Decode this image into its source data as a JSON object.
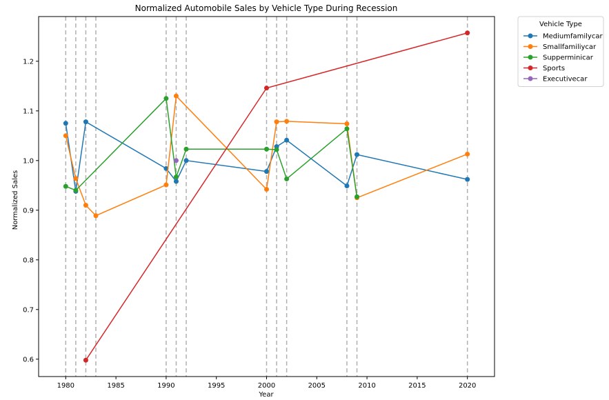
{
  "chart_data": {
    "type": "line",
    "title": "Normalized Automobile Sales by Vehicle Type During Recession",
    "xlabel": "Year",
    "ylabel": "Normalized Sales",
    "xlim": [
      1977.3,
      2022.7
    ],
    "ylim": [
      0.565,
      1.29
    ],
    "x_ticks": [
      1980,
      1985,
      1990,
      1995,
      2000,
      2005,
      2010,
      2015,
      2020
    ],
    "y_ticks": [
      0.6,
      0.7,
      0.8,
      0.9,
      1.0,
      1.1,
      1.2
    ],
    "y_tick_labels": [
      "0.6",
      "0.7",
      "0.8",
      "0.9",
      "1.0",
      "1.1",
      "1.2"
    ],
    "grid": false,
    "recession_years": [
      1980,
      1981,
      1982,
      1983,
      1990,
      1991,
      1992,
      2000,
      2001,
      2002,
      2008,
      2009,
      2020
    ],
    "legend_title": "Vehicle Type",
    "legend_position": "outside-upper-right",
    "series": [
      {
        "name": "Mediumfamilycar",
        "color": "#1f77b4",
        "points": [
          [
            1980,
            1.075
          ],
          [
            1981,
            0.938
          ],
          [
            1982,
            1.078
          ],
          [
            1990,
            0.984
          ],
          [
            1991,
            0.958
          ],
          [
            1992,
            1.0
          ],
          [
            2000,
            0.978
          ],
          [
            2001,
            1.028
          ],
          [
            2002,
            1.041
          ],
          [
            2008,
            0.949
          ],
          [
            2009,
            1.012
          ],
          [
            2020,
            0.962
          ]
        ]
      },
      {
        "name": "Smallfamiliycar",
        "color": "#ff7f0e",
        "points": [
          [
            1980,
            1.05
          ],
          [
            1981,
            0.964
          ],
          [
            1982,
            0.91
          ],
          [
            1983,
            0.889
          ],
          [
            1990,
            0.951
          ],
          [
            1991,
            1.13
          ],
          [
            2000,
            0.942
          ],
          [
            2001,
            1.078
          ],
          [
            2002,
            1.079
          ],
          [
            2008,
            1.074
          ],
          [
            2009,
            0.925
          ],
          [
            2020,
            1.013
          ]
        ]
      },
      {
        "name": "Supperminicar",
        "color": "#2ca02c",
        "points": [
          [
            1980,
            0.948
          ],
          [
            1981,
            0.94
          ],
          [
            1990,
            1.125
          ],
          [
            1991,
            0.967
          ],
          [
            1992,
            1.023
          ],
          [
            2000,
            1.023
          ],
          [
            2001,
            1.022
          ],
          [
            2002,
            0.963
          ],
          [
            2008,
            1.064
          ],
          [
            2009,
            0.927
          ]
        ]
      },
      {
        "name": "Sports",
        "color": "#d62728",
        "points": [
          [
            1982,
            0.598
          ],
          [
            2000,
            1.146
          ],
          [
            2020,
            1.257
          ]
        ]
      },
      {
        "name": "Executivecar",
        "color": "#9467bd",
        "points": [
          [
            1991,
            1.0
          ]
        ]
      }
    ]
  }
}
